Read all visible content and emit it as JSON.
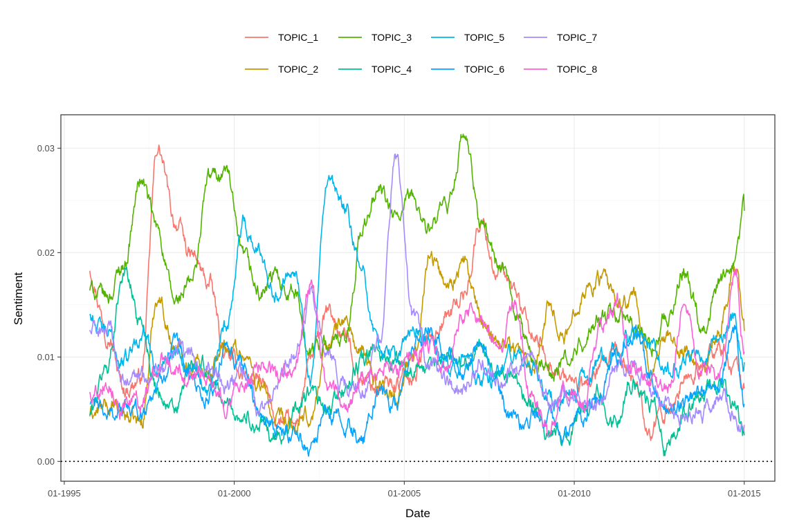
{
  "chart_data": {
    "type": "line",
    "title": "",
    "xlabel": "Date",
    "ylabel": "Sentiment",
    "x_ticks": [
      "01-1995",
      "01-2000",
      "01-2005",
      "01-2010",
      "01-2015"
    ],
    "y_ticks": [
      "0.00",
      "0.01",
      "0.02",
      "0.03"
    ],
    "xlim": [
      1994.9,
      2015.9
    ],
    "ylim": [
      -0.0019,
      0.0332
    ],
    "grid": true,
    "legend_position": "top",
    "reference_line": {
      "y": 0,
      "style": "dotted"
    },
    "x": [
      1995.75,
      1996.25,
      1996.75,
      1997.25,
      1997.75,
      1998.25,
      1998.75,
      1999.25,
      1999.75,
      2000.25,
      2000.75,
      2001.25,
      2001.75,
      2002.25,
      2002.75,
      2003.25,
      2003.75,
      2004.25,
      2004.75,
      2005.25,
      2005.75,
      2006.25,
      2006.75,
      2007.25,
      2007.75,
      2008.25,
      2008.75,
      2009.25,
      2009.75,
      2010.25,
      2010.75,
      2011.25,
      2011.75,
      2012.25,
      2012.75,
      2013.25,
      2013.75,
      2014.25,
      2014.75,
      2015.0
    ],
    "series": [
      {
        "name": "TOPIC_1",
        "color": "#F8766D",
        "values": [
          0.0185,
          0.013,
          0.007,
          0.008,
          0.03,
          0.023,
          0.0195,
          0.017,
          0.01,
          0.0085,
          0.0075,
          0.004,
          0.003,
          0.0095,
          0.014,
          0.012,
          0.008,
          0.007,
          0.0075,
          0.0085,
          0.012,
          0.014,
          0.016,
          0.023,
          0.018,
          0.016,
          0.012,
          0.01,
          0.008,
          0.007,
          0.0085,
          0.01,
          0.008,
          0.003,
          0.005,
          0.008,
          0.009,
          0.011,
          0.009,
          0.007
        ]
      },
      {
        "name": "TOPIC_2",
        "color": "#C49A00",
        "values": [
          0.0045,
          0.005,
          0.0045,
          0.0035,
          0.016,
          0.011,
          0.0095,
          0.009,
          0.011,
          0.0105,
          0.0075,
          0.0035,
          0.003,
          0.004,
          0.0115,
          0.0135,
          0.01,
          0.0075,
          0.0065,
          0.0095,
          0.02,
          0.017,
          0.019,
          0.0135,
          0.012,
          0.011,
          0.009,
          0.015,
          0.012,
          0.0165,
          0.0175,
          0.015,
          0.0155,
          0.009,
          0.0125,
          0.011,
          0.0075,
          0.0125,
          0.019,
          0.0125
        ]
      },
      {
        "name": "TOPIC_3",
        "color": "#53B400",
        "values": [
          0.0165,
          0.0155,
          0.019,
          0.027,
          0.022,
          0.015,
          0.017,
          0.027,
          0.028,
          0.019,
          0.016,
          0.0175,
          0.0165,
          0.0105,
          0.0115,
          0.011,
          0.022,
          0.026,
          0.023,
          0.025,
          0.022,
          0.024,
          0.031,
          0.023,
          0.019,
          0.015,
          0.01,
          0.0085,
          0.0095,
          0.011,
          0.0135,
          0.014,
          0.0125,
          0.011,
          0.014,
          0.0185,
          0.0135,
          0.0165,
          0.019,
          0.024
        ]
      },
      {
        "name": "TOPIC_4",
        "color": "#00C094",
        "values": [
          0.0045,
          0.009,
          0.0185,
          0.0135,
          0.007,
          0.0045,
          0.009,
          0.0085,
          0.0055,
          0.0045,
          0.0035,
          0.002,
          0.0045,
          0.0065,
          0.0045,
          0.007,
          0.0095,
          0.0105,
          0.0095,
          0.009,
          0.0085,
          0.0105,
          0.0095,
          0.011,
          0.0085,
          0.008,
          0.006,
          0.003,
          0.002,
          0.005,
          0.0065,
          0.004,
          0.008,
          0.0055,
          0.0005,
          0.0045,
          0.006,
          0.0075,
          0.0045,
          0.0025
        ]
      },
      {
        "name": "TOPIC_5",
        "color": "#00B6EB",
        "values": [
          0.014,
          0.012,
          0.0095,
          0.0125,
          0.009,
          0.011,
          0.0095,
          0.007,
          0.0125,
          0.023,
          0.02,
          0.0165,
          0.0195,
          0.0085,
          0.026,
          0.024,
          0.018,
          0.011,
          0.01,
          0.0125,
          0.0115,
          0.009,
          0.01,
          0.0075,
          0.0085,
          0.0105,
          0.0085,
          0.006,
          0.0065,
          0.0075,
          0.0095,
          0.0105,
          0.0125,
          0.0105,
          0.0085,
          0.0095,
          0.01,
          0.0115,
          0.0135,
          0.0095
        ]
      },
      {
        "name": "TOPIC_6",
        "color": "#06A4FF",
        "values": [
          0.0055,
          0.0045,
          0.005,
          0.0045,
          0.0075,
          0.0105,
          0.008,
          0.006,
          0.0105,
          0.0085,
          0.005,
          0.0035,
          0.0025,
          0.0015,
          0.0045,
          0.0035,
          0.002,
          0.0065,
          0.0055,
          0.0105,
          0.0125,
          0.011,
          0.0085,
          0.0115,
          0.0065,
          0.004,
          0.0045,
          0.004,
          0.0025,
          0.0045,
          0.0065,
          0.01,
          0.0125,
          0.008,
          0.005,
          0.0055,
          0.0065,
          0.0075,
          0.0125,
          0.0055
        ]
      },
      {
        "name": "TOPIC_7",
        "color": "#A58AFF",
        "values": [
          0.0125,
          0.0125,
          0.0075,
          0.008,
          0.0095,
          0.011,
          0.01,
          0.0085,
          0.007,
          0.0085,
          0.004,
          0.007,
          0.011,
          0.0155,
          0.0095,
          0.0075,
          0.0065,
          0.0115,
          0.029,
          0.013,
          0.0095,
          0.0075,
          0.006,
          0.0095,
          0.0075,
          0.0085,
          0.0095,
          0.006,
          0.0065,
          0.005,
          0.0055,
          0.0085,
          0.0095,
          0.0065,
          0.005,
          0.0045,
          0.0045,
          0.0065,
          0.0045,
          0.0035
        ]
      },
      {
        "name": "TOPIC_8",
        "color": "#FB61D7",
        "values": [
          0.0065,
          0.008,
          0.0055,
          0.0055,
          0.0095,
          0.009,
          0.0085,
          0.0085,
          0.006,
          0.007,
          0.0095,
          0.008,
          0.0085,
          0.0165,
          0.0075,
          0.0045,
          0.0075,
          0.0085,
          0.009,
          0.0105,
          0.011,
          0.0085,
          0.0145,
          0.014,
          0.011,
          0.0155,
          0.0065,
          0.0025,
          0.0075,
          0.0055,
          0.0125,
          0.0155,
          0.0085,
          0.0075,
          0.0065,
          0.0155,
          0.0085,
          0.0085,
          0.0175,
          0.0105
        ]
      }
    ]
  }
}
